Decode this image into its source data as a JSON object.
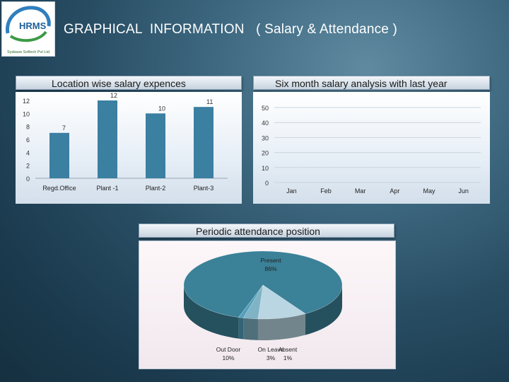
{
  "header": {
    "title": "GRAPHICAL  INFORMATION   ( Salary & Attendance )",
    "logo_text": "HRMS",
    "logo_subtitle": "Sysbase Softech Pvt Ltd"
  },
  "colors": {
    "bar": "#3b7fa1",
    "pie_present": "#3b8198",
    "pie_outdoor": "#b9d6e2",
    "pie_onleave": "#7fb3c5",
    "pie_absent": "#52a0bc"
  },
  "chart_data": [
    {
      "type": "bar",
      "title": "Location wise salary expences",
      "categories": [
        "Regd.Office",
        "Plant -1",
        "Plant-2",
        "Plant-3"
      ],
      "values": [
        7,
        12,
        10,
        11
      ],
      "data_labels": [
        "7",
        "12",
        "10",
        "11"
      ],
      "ylim": [
        0,
        12
      ],
      "yticks": [
        "0",
        "2",
        "4",
        "6",
        "8",
        "10",
        "12"
      ],
      "grid": false
    },
    {
      "type": "line",
      "title": "Six month salary analysis with last year",
      "categories": [
        "Jan",
        "Feb",
        "Mar",
        "Apr",
        "May",
        "Jun"
      ],
      "series": [],
      "ylim": [
        0,
        50
      ],
      "yticks": [
        "0",
        "10",
        "20",
        "30",
        "40",
        "50"
      ],
      "grid": true
    },
    {
      "type": "pie",
      "title": "Periodic attendance position",
      "slices": [
        {
          "label": "Present",
          "value": 86,
          "pct": "86%"
        },
        {
          "label": "Out Door",
          "value": 10,
          "pct": "10%"
        },
        {
          "label": "On Leave",
          "value": 3,
          "pct": "3%"
        },
        {
          "label": "Absent",
          "value": 1,
          "pct": "1%"
        }
      ]
    }
  ]
}
